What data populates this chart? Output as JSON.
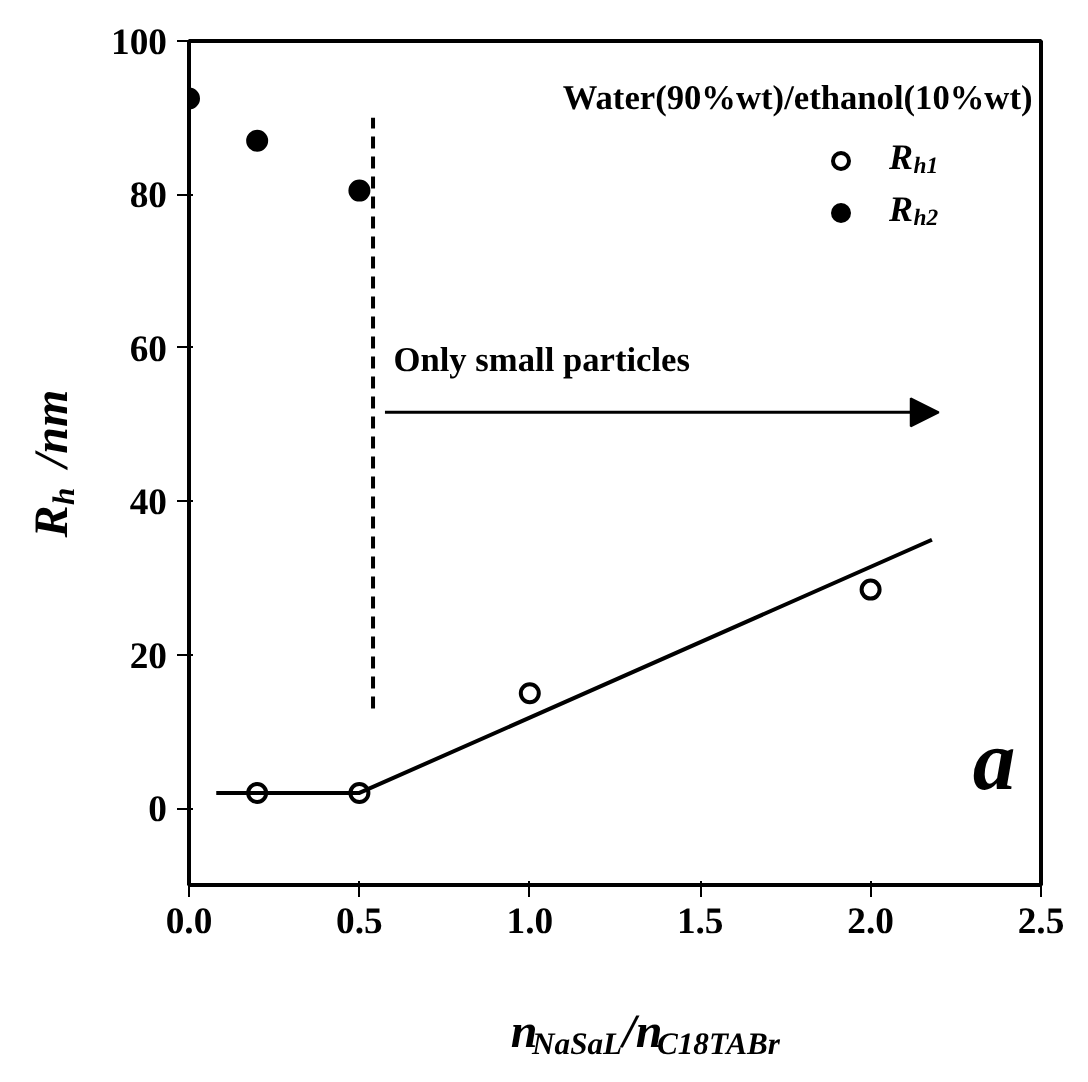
{
  "chart_data": {
    "type": "scatter",
    "xlabel": "n$_{NaSaL}$/n$_{C18TABr}$",
    "ylabel": "R$_{h}$ /nm",
    "xlim": [
      0,
      2.5
    ],
    "xticks": [
      {
        "value": 0,
        "label": "0.0"
      },
      0.5,
      {
        "value": 1,
        "label": "1.0"
      },
      1.5,
      {
        "value": 2,
        "label": "2.0"
      },
      2.5
    ],
    "ylim": [
      -10,
      100
    ],
    "yticks": [
      0,
      20,
      40,
      60,
      80,
      100
    ],
    "grid": false,
    "legend": "top right",
    "annotations": [
      "Water(90%wt)/ethanol(10%wt)",
      "Only small particles",
      "a"
    ],
    "series": [
      {
        "name": "R$_{h1}$",
        "color": "#000000",
        "marker": "circle",
        "x": [
          0.2,
          0.5,
          1.0,
          2.0
        ],
        "values": [
          2,
          2,
          15,
          28.5
        ]
      },
      {
        "name": "R$_{h2}$",
        "color": "#000000",
        "marker": "circle",
        "x": [
          0.0,
          0.2,
          0.5
        ],
        "values": [
          92.5,
          87,
          80.5
        ]
      },
      {
        "type": "line",
        "color": "#000000",
        "x": [
          0.08,
          0.5,
          2.18
        ],
        "values": [
          2,
          2,
          35
        ]
      },
      {
        "type": "line",
        "color": "#000000",
        "line_style": "dashed",
        "x": [
          0.54,
          0.54
        ],
        "values": [
          13,
          90
        ]
      }
    ]
  }
}
